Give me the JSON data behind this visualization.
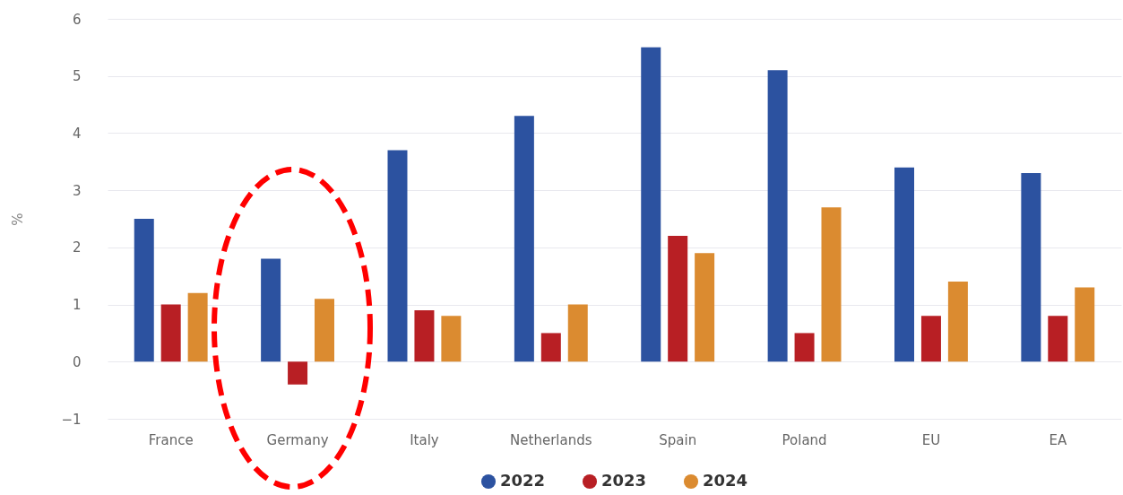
{
  "chart_data": {
    "type": "bar",
    "ylabel": "%",
    "categories": [
      "France",
      "Germany",
      "Italy",
      "Netherlands",
      "Spain",
      "Poland",
      "EU",
      "EA"
    ],
    "series": [
      {
        "name": "2022",
        "color": "#2c52a0",
        "values": [
          2.5,
          1.8,
          3.7,
          4.3,
          5.5,
          5.1,
          3.4,
          3.3
        ]
      },
      {
        "name": "2023",
        "color": "#b81f24",
        "values": [
          1.0,
          -0.4,
          0.9,
          0.5,
          2.2,
          0.5,
          0.8,
          0.8
        ]
      },
      {
        "name": "2024",
        "color": "#db8b30",
        "values": [
          1.2,
          1.1,
          0.8,
          1.0,
          1.9,
          2.7,
          1.4,
          1.3
        ]
      }
    ],
    "ylim": [
      -1,
      6
    ],
    "yticks": [
      -1,
      0,
      1,
      2,
      3,
      4,
      5,
      6
    ],
    "grid": "y",
    "legend": "bottom"
  }
}
